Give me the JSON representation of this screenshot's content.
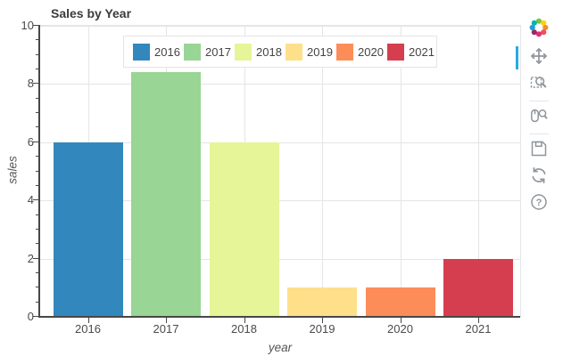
{
  "chart_data": {
    "type": "bar",
    "title": "Sales by Year",
    "xlabel": "year",
    "ylabel": "sales",
    "categories": [
      "2016",
      "2017",
      "2018",
      "2019",
      "2020",
      "2021"
    ],
    "values": [
      6,
      8.4,
      6,
      1,
      1,
      2
    ],
    "colors": [
      "#3288bd",
      "#99d594",
      "#e6f598",
      "#fee08b",
      "#fc8d59",
      "#d53e4f"
    ],
    "ylim": [
      0,
      10
    ],
    "yticks": [
      0,
      2,
      4,
      6,
      8,
      10
    ],
    "minor_tick_step": 0.5,
    "grid": true,
    "gridline_color": "#e5e5e5",
    "axis_color": "#474747",
    "legend_position": "top-center"
  },
  "legend": {
    "entries": [
      {
        "label": "2016",
        "color": "#3288bd"
      },
      {
        "label": "2017",
        "color": "#99d594"
      },
      {
        "label": "2018",
        "color": "#e6f598"
      },
      {
        "label": "2019",
        "color": "#fee08b"
      },
      {
        "label": "2020",
        "color": "#fc8d59"
      },
      {
        "label": "2021",
        "color": "#d53e4f"
      }
    ]
  },
  "toolbar": {
    "logo": "bokeh-logo",
    "active_tool": "pan",
    "active_indicator_color": "#26aae1",
    "icon_color": "#8f959c",
    "tools": [
      {
        "name": "pan",
        "icon": "pan-icon",
        "active": true,
        "divider_after": false
      },
      {
        "name": "box-zoom",
        "icon": "box-zoom-icon",
        "active": false,
        "divider_after": true
      },
      {
        "name": "wheel-zoom",
        "icon": "wheel-zoom-icon",
        "active": false,
        "divider_after": true
      },
      {
        "name": "save",
        "icon": "save-icon",
        "active": false,
        "divider_after": false
      },
      {
        "name": "reset",
        "icon": "reset-icon",
        "active": false,
        "divider_after": false
      },
      {
        "name": "help",
        "icon": "help-icon",
        "active": false,
        "divider_after": false
      }
    ]
  }
}
